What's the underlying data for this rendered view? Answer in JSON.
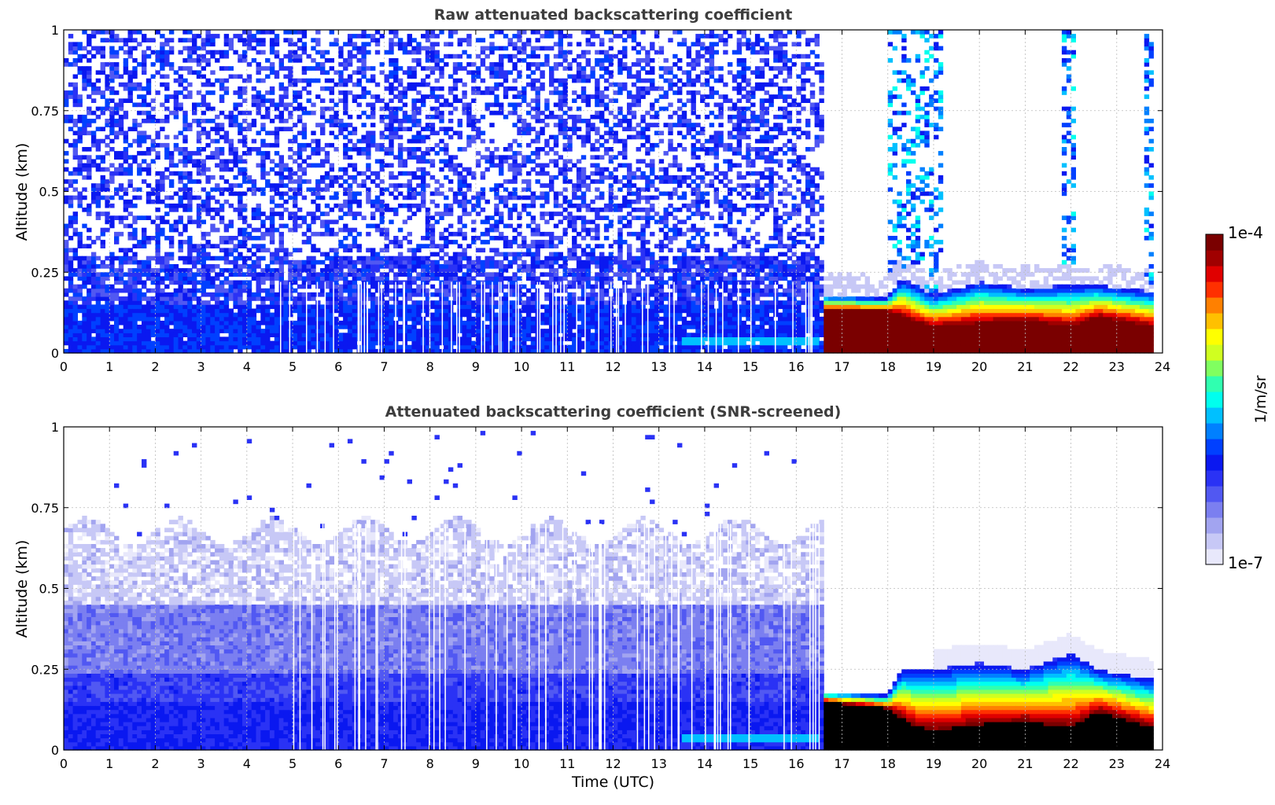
{
  "colors": {
    "colormap": [
      "#e8e8fb",
      "#c7c8f6",
      "#a2a4f0",
      "#7b7ff0",
      "#5158f2",
      "#2a32f5",
      "#0a18f0",
      "#0040ff",
      "#0080ff",
      "#00c0ff",
      "#00ffee",
      "#30ffb0",
      "#80ff60",
      "#d0ff20",
      "#ffff00",
      "#ffc000",
      "#ff8000",
      "#ff3000",
      "#e00000",
      "#a00000",
      "#7a0000"
    ],
    "saturated_below": "#000000",
    "grid": "#bbbbbb",
    "title_text": "#3d3d3d"
  },
  "colorbar": {
    "min_label": "1e-7",
    "max_label": "1e-4",
    "label": "1/m/sr"
  },
  "chart_data": [
    {
      "type": "heatmap",
      "title": "Raw attenuated backscattering coefficient",
      "xlabel": "",
      "ylabel": "Altitude (km)",
      "xlim": [
        0,
        24
      ],
      "ylim": [
        0,
        1
      ],
      "x_ticks": [
        0,
        1,
        2,
        3,
        4,
        5,
        6,
        7,
        8,
        9,
        10,
        11,
        12,
        13,
        14,
        15,
        16,
        17,
        18,
        19,
        20,
        21,
        22,
        23,
        24
      ],
      "y_ticks": [
        0,
        0.25,
        0.5,
        0.75,
        1
      ],
      "y_tick_labels": [
        "0",
        "0.25",
        "0.5",
        "0.75",
        "1"
      ],
      "grid": true,
      "data_end_time": 23.8,
      "regimes": [
        {
          "time_range": [
            0,
            16.6
          ],
          "description": "noisy blue backscatter at all altitudes, denser below 0.3 km"
        },
        {
          "time_range": [
            16.6,
            23.8
          ],
          "description": "strong aerosol layer below about 0.2 km; near-surface values reach 1e-4"
        }
      ],
      "layer_top_km": [
        [
          16.6,
          0.18
        ],
        [
          18.0,
          0.17
        ],
        [
          18.3,
          0.23
        ],
        [
          19.0,
          0.18
        ],
        [
          20.0,
          0.22
        ],
        [
          21.0,
          0.2
        ],
        [
          22.0,
          0.21
        ],
        [
          22.6,
          0.21
        ],
        [
          23.8,
          0.19
        ]
      ],
      "saturated_layer_top_km": [
        [
          16.6,
          0.13
        ],
        [
          18.0,
          0.13
        ],
        [
          18.5,
          0.1
        ],
        [
          19.0,
          0.08
        ],
        [
          20.0,
          0.09
        ],
        [
          21.0,
          0.1
        ],
        [
          22.0,
          0.08
        ],
        [
          22.6,
          0.11
        ],
        [
          23.8,
          0.08
        ]
      ]
    },
    {
      "type": "heatmap",
      "title": "Attenuated backscattering coefficient (SNR-screened)",
      "xlabel": "Time (UTC)",
      "ylabel": "Altitude (km)",
      "xlim": [
        0,
        24
      ],
      "ylim": [
        0,
        1
      ],
      "x_ticks": [
        0,
        1,
        2,
        3,
        4,
        5,
        6,
        7,
        8,
        9,
        10,
        11,
        12,
        13,
        14,
        15,
        16,
        17,
        18,
        19,
        20,
        21,
        22,
        23,
        24
      ],
      "y_ticks": [
        0,
        0.25,
        0.5,
        0.75,
        1
      ],
      "y_tick_labels": [
        "0",
        "0.25",
        "0.5",
        "0.75",
        "1"
      ],
      "grid": true,
      "data_end_time": 23.8,
      "regimes": [
        {
          "time_range": [
            0,
            16.6
          ],
          "description": "layered light-blue to blue values, top near 0.7 km"
        },
        {
          "time_range": [
            16.6,
            23.8
          ],
          "description": "same aerosol layer as raw panel; saturated core shown in black"
        }
      ],
      "layer_top_km": [
        [
          16.6,
          0.18
        ],
        [
          18.0,
          0.17
        ],
        [
          18.3,
          0.25
        ],
        [
          19.0,
          0.25
        ],
        [
          20.0,
          0.27
        ],
        [
          21.0,
          0.25
        ],
        [
          22.0,
          0.3
        ],
        [
          22.6,
          0.25
        ],
        [
          23.8,
          0.22
        ]
      ],
      "saturated_layer_top_km": [
        [
          16.6,
          0.15
        ],
        [
          18.0,
          0.13
        ],
        [
          18.5,
          0.08
        ],
        [
          19.0,
          0.06
        ],
        [
          20.0,
          0.08
        ],
        [
          21.0,
          0.09
        ],
        [
          22.0,
          0.07
        ],
        [
          22.6,
          0.12
        ],
        [
          23.8,
          0.07
        ]
      ]
    }
  ]
}
